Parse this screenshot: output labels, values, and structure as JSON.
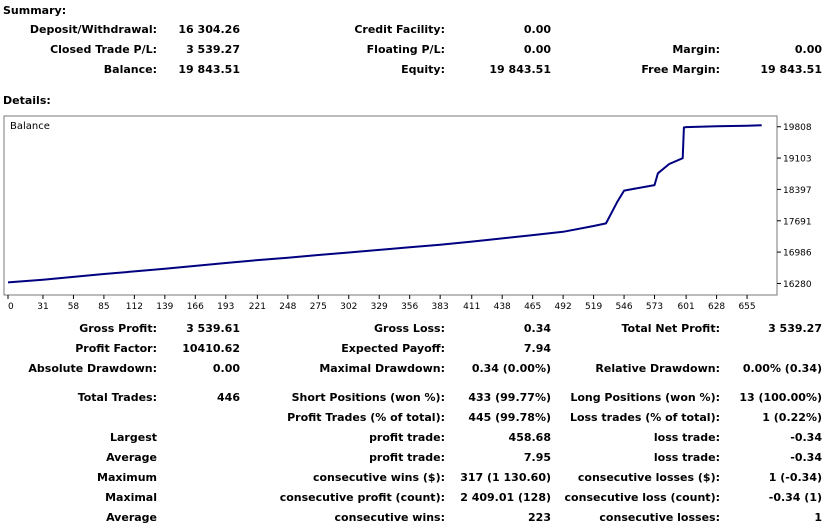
{
  "summary": {
    "title": "Summary:",
    "rows": [
      [
        {
          "label": "Deposit/Withdrawal:",
          "value": "16 304.26"
        },
        {
          "label": "Credit Facility:",
          "value": "0.00"
        },
        {
          "label": "",
          "value": ""
        }
      ],
      [
        {
          "label": "Closed Trade P/L:",
          "value": "3 539.27"
        },
        {
          "label": "Floating P/L:",
          "value": "0.00"
        },
        {
          "label": "Margin:",
          "value": "0.00"
        }
      ],
      [
        {
          "label": "Balance:",
          "value": "19 843.51"
        },
        {
          "label": "Equity:",
          "value": "19 843.51"
        },
        {
          "label": "Free Margin:",
          "value": "19 843.51"
        }
      ]
    ]
  },
  "details": {
    "title": "Details:",
    "rows": [
      [
        {
          "label": "Gross Profit:",
          "value": "3 539.61"
        },
        {
          "label": "Gross Loss:",
          "value": "0.34"
        },
        {
          "label": "Total Net Profit:",
          "value": "3 539.27"
        }
      ],
      [
        {
          "label": "Profit Factor:",
          "value": "10410.62"
        },
        {
          "label": "Expected Payoff:",
          "value": "7.94"
        },
        {
          "label": "",
          "value": ""
        }
      ],
      [
        {
          "label": "Absolute Drawdown:",
          "value": "0.00"
        },
        {
          "label": "Maximal Drawdown:",
          "value": "0.34 (0.00%)"
        },
        {
          "label": "Relative Drawdown:",
          "value": "0.00% (0.34)"
        }
      ],
      [
        {
          "label": "Total Trades:",
          "value": "446"
        },
        {
          "label": "Short Positions (won %):",
          "value": "433 (99.77%)"
        },
        {
          "label": "Long Positions (won %):",
          "value": "13 (100.00%)"
        }
      ],
      [
        {
          "label": "",
          "value": ""
        },
        {
          "label": "Profit Trades (% of total):",
          "value": "445 (99.78%)"
        },
        {
          "label": "Loss trades (% of total):",
          "value": "1 (0.22%)"
        }
      ],
      [
        {
          "label": "Largest",
          "value": ""
        },
        {
          "label": "profit trade:",
          "value": "458.68"
        },
        {
          "label": "loss trade:",
          "value": "-0.34"
        }
      ],
      [
        {
          "label": "Average",
          "value": ""
        },
        {
          "label": "profit trade:",
          "value": "7.95"
        },
        {
          "label": "loss trade:",
          "value": "-0.34"
        }
      ],
      [
        {
          "label": "Maximum",
          "value": ""
        },
        {
          "label": "consecutive wins ($):",
          "value": "317 (1 130.60)"
        },
        {
          "label": "consecutive losses ($):",
          "value": "1 (-0.34)"
        }
      ],
      [
        {
          "label": "Maximal",
          "value": ""
        },
        {
          "label": "consecutive profit (count):",
          "value": "2 409.01 (128)"
        },
        {
          "label": "consecutive loss (count):",
          "value": "-0.34 (1)"
        }
      ],
      [
        {
          "label": "Average",
          "value": ""
        },
        {
          "label": "consecutive wins:",
          "value": "223"
        },
        {
          "label": "consecutive losses:",
          "value": "1"
        }
      ]
    ]
  },
  "chart_data": {
    "type": "line",
    "title": "Balance",
    "line_color": "#000080",
    "x_ticks": [
      0,
      31,
      58,
      85,
      112,
      139,
      166,
      193,
      221,
      248,
      275,
      302,
      329,
      356,
      383,
      411,
      438,
      465,
      492,
      519,
      546,
      573,
      601,
      628,
      655
    ],
    "y_ticks": [
      16280,
      16986,
      17691,
      18397,
      19103,
      19808
    ],
    "xlim": [
      0,
      678
    ],
    "ylim": [
      16200,
      20050
    ],
    "series": [
      {
        "x": [
          0,
          31,
          58,
          85,
          112,
          139,
          166,
          193,
          221,
          248,
          275,
          302,
          329,
          356,
          383,
          411,
          438,
          465,
          492,
          519,
          530,
          540,
          546,
          573,
          576,
          586,
          598,
          599,
          601,
          628,
          655,
          668
        ],
        "y": [
          16304,
          16362,
          16428,
          16492,
          16551,
          16612,
          16674,
          16741,
          16805,
          16860,
          16920,
          16977,
          17035,
          17094,
          17153,
          17223,
          17295,
          17368,
          17443,
          17574,
          17631,
          18118,
          18371,
          18495,
          18760,
          18970,
          19099,
          19790,
          19800,
          19818,
          19832,
          19843.51
        ]
      }
    ]
  }
}
